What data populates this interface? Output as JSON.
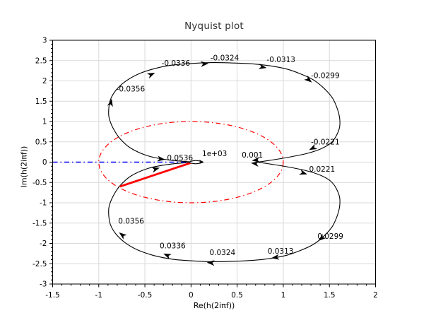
{
  "title": "Nyquist plot",
  "axes": {
    "xlabel": "Re(h(2iπf))",
    "ylabel": "Im(h(2iπf))",
    "x_tick_labels": [
      "-1.5",
      "-1",
      "-0.5",
      "0",
      "0.5",
      "1",
      "1.5",
      "2"
    ],
    "y_tick_labels": [
      "3",
      "2.5",
      "2",
      "1.5",
      "1",
      "0.5",
      "0",
      "-0.5",
      "-1",
      "-1.5",
      "-2",
      "-2.5",
      "-3"
    ]
  },
  "colors": {
    "curve": "#000000",
    "unit_circle": "#ff0000",
    "axis_reference_line": "#0000ff",
    "phase_margin_line": "#ff0000",
    "grid": "#d9d9d9",
    "frame": "#000000",
    "text": "#000000",
    "title": "#333333"
  },
  "chart_data": {
    "type": "line",
    "title": "Nyquist plot",
    "xlabel": "Re(h(2iπf))",
    "ylabel": "Im(h(2iπf))",
    "xlim": [
      -1.5,
      2
    ],
    "ylim": [
      -3,
      3
    ],
    "x_ticks": [
      -1.5,
      -1,
      -0.5,
      0,
      0.5,
      1,
      1.5,
      2
    ],
    "y_ticks": [
      3,
      2.5,
      2,
      1.5,
      1,
      0.5,
      0,
      -0.5,
      -1,
      -1.5,
      -2,
      -2.5,
      -3
    ],
    "minor_tick_step": 0.1,
    "grid": true,
    "legend": "none",
    "series": [
      {
        "name": "unit-circle",
        "color": "#ff0000",
        "style": "dash-dot",
        "shape": "circle",
        "center": [
          0,
          0
        ],
        "radius": 1,
        "width": 1.2
      },
      {
        "name": "negative-real-axis-line",
        "color": "#0000ff",
        "style": "dash-dot",
        "from": [
          -1.5,
          0
        ],
        "to": [
          0.01,
          0
        ],
        "width": 1.6
      },
      {
        "name": "negative-frequency-branch",
        "color": "#000000",
        "style": "solid",
        "width": 1.1,
        "points": [
          [
            -0.02,
            0.01
          ],
          [
            -0.23,
            0.05
          ],
          [
            -0.46,
            0.15
          ],
          [
            -0.65,
            0.34
          ],
          [
            -0.77,
            0.58
          ],
          [
            -0.85,
            0.86
          ],
          [
            -0.89,
            1.12
          ],
          [
            -0.89,
            1.35
          ],
          [
            -0.87,
            1.56
          ],
          [
            -0.81,
            1.78
          ],
          [
            -0.71,
            1.99
          ],
          [
            -0.57,
            2.17
          ],
          [
            -0.4,
            2.3
          ],
          [
            -0.2,
            2.39
          ],
          [
            0.01,
            2.43
          ],
          [
            0.24,
            2.45
          ],
          [
            0.46,
            2.44
          ],
          [
            0.66,
            2.42
          ],
          [
            0.86,
            2.37
          ],
          [
            1.04,
            2.29
          ],
          [
            1.19,
            2.17
          ],
          [
            1.33,
            2.02
          ],
          [
            1.44,
            1.82
          ],
          [
            1.53,
            1.59
          ],
          [
            1.58,
            1.35
          ],
          [
            1.61,
            1.1
          ],
          [
            1.61,
            0.86
          ],
          [
            1.57,
            0.63
          ],
          [
            1.51,
            0.46
          ],
          [
            1.4,
            0.32
          ],
          [
            1.25,
            0.21
          ],
          [
            1.08,
            0.13
          ],
          [
            0.9,
            0.06
          ],
          [
            0.72,
            0.0
          ]
        ]
      },
      {
        "name": "positive-frequency-branch",
        "color": "#000000",
        "style": "solid",
        "width": 1.1,
        "points": [
          [
            -0.02,
            -0.01
          ],
          [
            -0.23,
            -0.05
          ],
          [
            -0.46,
            -0.15
          ],
          [
            -0.65,
            -0.34
          ],
          [
            -0.77,
            -0.58
          ],
          [
            -0.85,
            -0.86
          ],
          [
            -0.89,
            -1.12
          ],
          [
            -0.89,
            -1.35
          ],
          [
            -0.87,
            -1.56
          ],
          [
            -0.81,
            -1.78
          ],
          [
            -0.71,
            -1.99
          ],
          [
            -0.57,
            -2.17
          ],
          [
            -0.4,
            -2.3
          ],
          [
            -0.2,
            -2.39
          ],
          [
            0.01,
            -2.43
          ],
          [
            0.24,
            -2.45
          ],
          [
            0.46,
            -2.44
          ],
          [
            0.66,
            -2.42
          ],
          [
            0.86,
            -2.37
          ],
          [
            1.04,
            -2.29
          ],
          [
            1.19,
            -2.17
          ],
          [
            1.33,
            -2.02
          ],
          [
            1.44,
            -1.82
          ],
          [
            1.53,
            -1.59
          ],
          [
            1.58,
            -1.35
          ],
          [
            1.61,
            -1.1
          ],
          [
            1.61,
            -0.86
          ],
          [
            1.57,
            -0.63
          ],
          [
            1.51,
            -0.46
          ],
          [
            1.4,
            -0.32
          ],
          [
            1.25,
            -0.21
          ],
          [
            1.08,
            -0.13
          ],
          [
            0.9,
            -0.06
          ],
          [
            0.72,
            0.0
          ]
        ]
      },
      {
        "name": "phase-margin-line",
        "color": "#ff0000",
        "style": "solid",
        "width": 2.8,
        "from": [
          0.02,
          0.0
        ],
        "to": [
          -0.77,
          -0.6
        ]
      },
      {
        "name": "high-frequency-end-loop",
        "color": "#000000",
        "style": "solid",
        "width": 1.1,
        "closed": true,
        "fill": "#ffffff",
        "points": [
          [
            -0.02,
            0.0
          ],
          [
            0.05,
            0.04
          ],
          [
            0.13,
            0.0
          ],
          [
            0.05,
            -0.04
          ]
        ]
      }
    ],
    "frequency_labels": [
      {
        "text": "-0.0356",
        "x": -0.81,
        "y": 1.8
      },
      {
        "text": "-0.0336",
        "x": -0.32,
        "y": 2.44
      },
      {
        "text": "-0.0324",
        "x": 0.21,
        "y": 2.57
      },
      {
        "text": "-0.0313",
        "x": 0.82,
        "y": 2.52
      },
      {
        "text": "-0.0299",
        "x": 1.3,
        "y": 2.13
      },
      {
        "text": "-0.0221",
        "x": 1.3,
        "y": 0.5
      },
      {
        "text": "0.001",
        "x": 0.55,
        "y": 0.18
      },
      {
        "text": "1e+03",
        "x": 0.12,
        "y": 0.21
      },
      {
        "text": "0.0536",
        "x": -0.26,
        "y": 0.11
      },
      {
        "text": "0.0221",
        "x": 1.28,
        "y": -0.17
      },
      {
        "text": "0.0299",
        "x": 1.37,
        "y": -1.82
      },
      {
        "text": "0.0313",
        "x": 0.83,
        "y": -2.19
      },
      {
        "text": "0.0324",
        "x": 0.2,
        "y": -2.22
      },
      {
        "text": "0.0336",
        "x": -0.34,
        "y": -2.06
      },
      {
        "text": "0.0356",
        "x": -0.79,
        "y": -1.45
      }
    ],
    "arrows": [
      {
        "x": -0.86,
        "y": 1.56,
        "angle": -78
      },
      {
        "x": -0.39,
        "y": 2.2,
        "angle": -24
      },
      {
        "x": 0.19,
        "y": 2.43,
        "angle": -5
      },
      {
        "x": 0.82,
        "y": 2.32,
        "angle": 11
      },
      {
        "x": 1.31,
        "y": 1.96,
        "angle": 40
      },
      {
        "x": 1.28,
        "y": 0.3,
        "angle": 153
      },
      {
        "x": 0.66,
        "y": 0.04,
        "angle": 174
      },
      {
        "x": 0.65,
        "y": -0.02,
        "angle": 187
      },
      {
        "x": 1.26,
        "y": -0.3,
        "angle": 18
      },
      {
        "x": 1.38,
        "y": -1.94,
        "angle": 140
      },
      {
        "x": 0.87,
        "y": -2.36,
        "angle": 172
      },
      {
        "x": 0.17,
        "y": -2.47,
        "angle": 184
      },
      {
        "x": -0.3,
        "y": -2.25,
        "angle": 204
      },
      {
        "x": -0.78,
        "y": -1.73,
        "angle": 218
      },
      {
        "x": -0.28,
        "y": 0.06,
        "angle": 8
      },
      {
        "x": -0.34,
        "y": -0.14,
        "angle": -16
      },
      {
        "x": 0.14,
        "y": 0.0,
        "angle": 8,
        "size": "small"
      }
    ],
    "labeled_curve_points": [
      {
        "f": -0.0356,
        "re": -0.86,
        "im": 1.56
      },
      {
        "f": -0.0336,
        "re": -0.39,
        "im": 2.2
      },
      {
        "f": -0.0324,
        "re": 0.19,
        "im": 2.43
      },
      {
        "f": -0.0313,
        "re": 0.82,
        "im": 2.32
      },
      {
        "f": -0.0299,
        "re": 1.31,
        "im": 1.96
      },
      {
        "f": -0.0221,
        "re": 1.28,
        "im": 0.3
      },
      {
        "f": -0.001,
        "re": 0.66,
        "im": 0.04
      },
      {
        "f": 0.001,
        "re": 0.65,
        "im": -0.02
      },
      {
        "f": 0.0221,
        "re": 1.26,
        "im": -0.3
      },
      {
        "f": 0.0299,
        "re": 1.38,
        "im": -1.94
      },
      {
        "f": 0.0313,
        "re": 0.87,
        "im": -2.36
      },
      {
        "f": 0.0324,
        "re": 0.17,
        "im": -2.47
      },
      {
        "f": 0.0336,
        "re": -0.3,
        "im": -2.25
      },
      {
        "f": 0.0356,
        "re": -0.78,
        "im": -1.73
      },
      {
        "f": 0.0536,
        "re": -0.28,
        "im": 0.06
      },
      {
        "f": 1000,
        "re": 0.14,
        "im": 0.0
      }
    ]
  }
}
